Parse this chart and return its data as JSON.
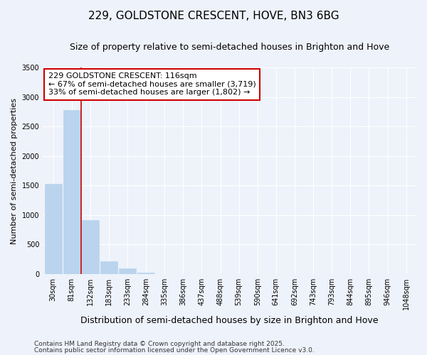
{
  "title": "229, GOLDSTONE CRESCENT, HOVE, BN3 6BG",
  "subtitle": "Size of property relative to semi-detached houses in Brighton and Hove",
  "xlabel": "Distribution of semi-detached houses by size in Brighton and Hove",
  "ylabel": "Number of semi-detached properties",
  "bar_labels": [
    "30sqm",
    "81sqm",
    "132sqm",
    "183sqm",
    "233sqm",
    "284sqm",
    "335sqm",
    "386sqm",
    "437sqm",
    "488sqm",
    "539sqm",
    "590sqm",
    "641sqm",
    "692sqm",
    "743sqm",
    "793sqm",
    "844sqm",
    "895sqm",
    "946sqm",
    "1048sqm"
  ],
  "bar_values": [
    1530,
    2780,
    920,
    215,
    95,
    20,
    0,
    0,
    0,
    0,
    0,
    0,
    0,
    0,
    0,
    0,
    0,
    0,
    0,
    0
  ],
  "bar_color": "#bad4ed",
  "bar_edge_color": "#bad4ed",
  "property_line_x": 1.5,
  "property_label": "229 GOLDSTONE CRESCENT: 116sqm",
  "annotation_smaller": "← 67% of semi-detached houses are smaller (3,719)",
  "annotation_larger": "33% of semi-detached houses are larger (1,802) →",
  "annotation_box_color": "#ffffff",
  "annotation_box_edge": "#cc0000",
  "vertical_line_color": "#cc0000",
  "ylim": [
    0,
    3500
  ],
  "footnote1": "Contains HM Land Registry data © Crown copyright and database right 2025.",
  "footnote2": "Contains public sector information licensed under the Open Government Licence v3.0.",
  "bg_color": "#eef2fa",
  "grid_color": "#ffffff",
  "title_fontsize": 11,
  "subtitle_fontsize": 9,
  "ylabel_fontsize": 8,
  "xlabel_fontsize": 9,
  "tick_fontsize": 7,
  "annot_fontsize": 8,
  "footnote_fontsize": 6.5
}
